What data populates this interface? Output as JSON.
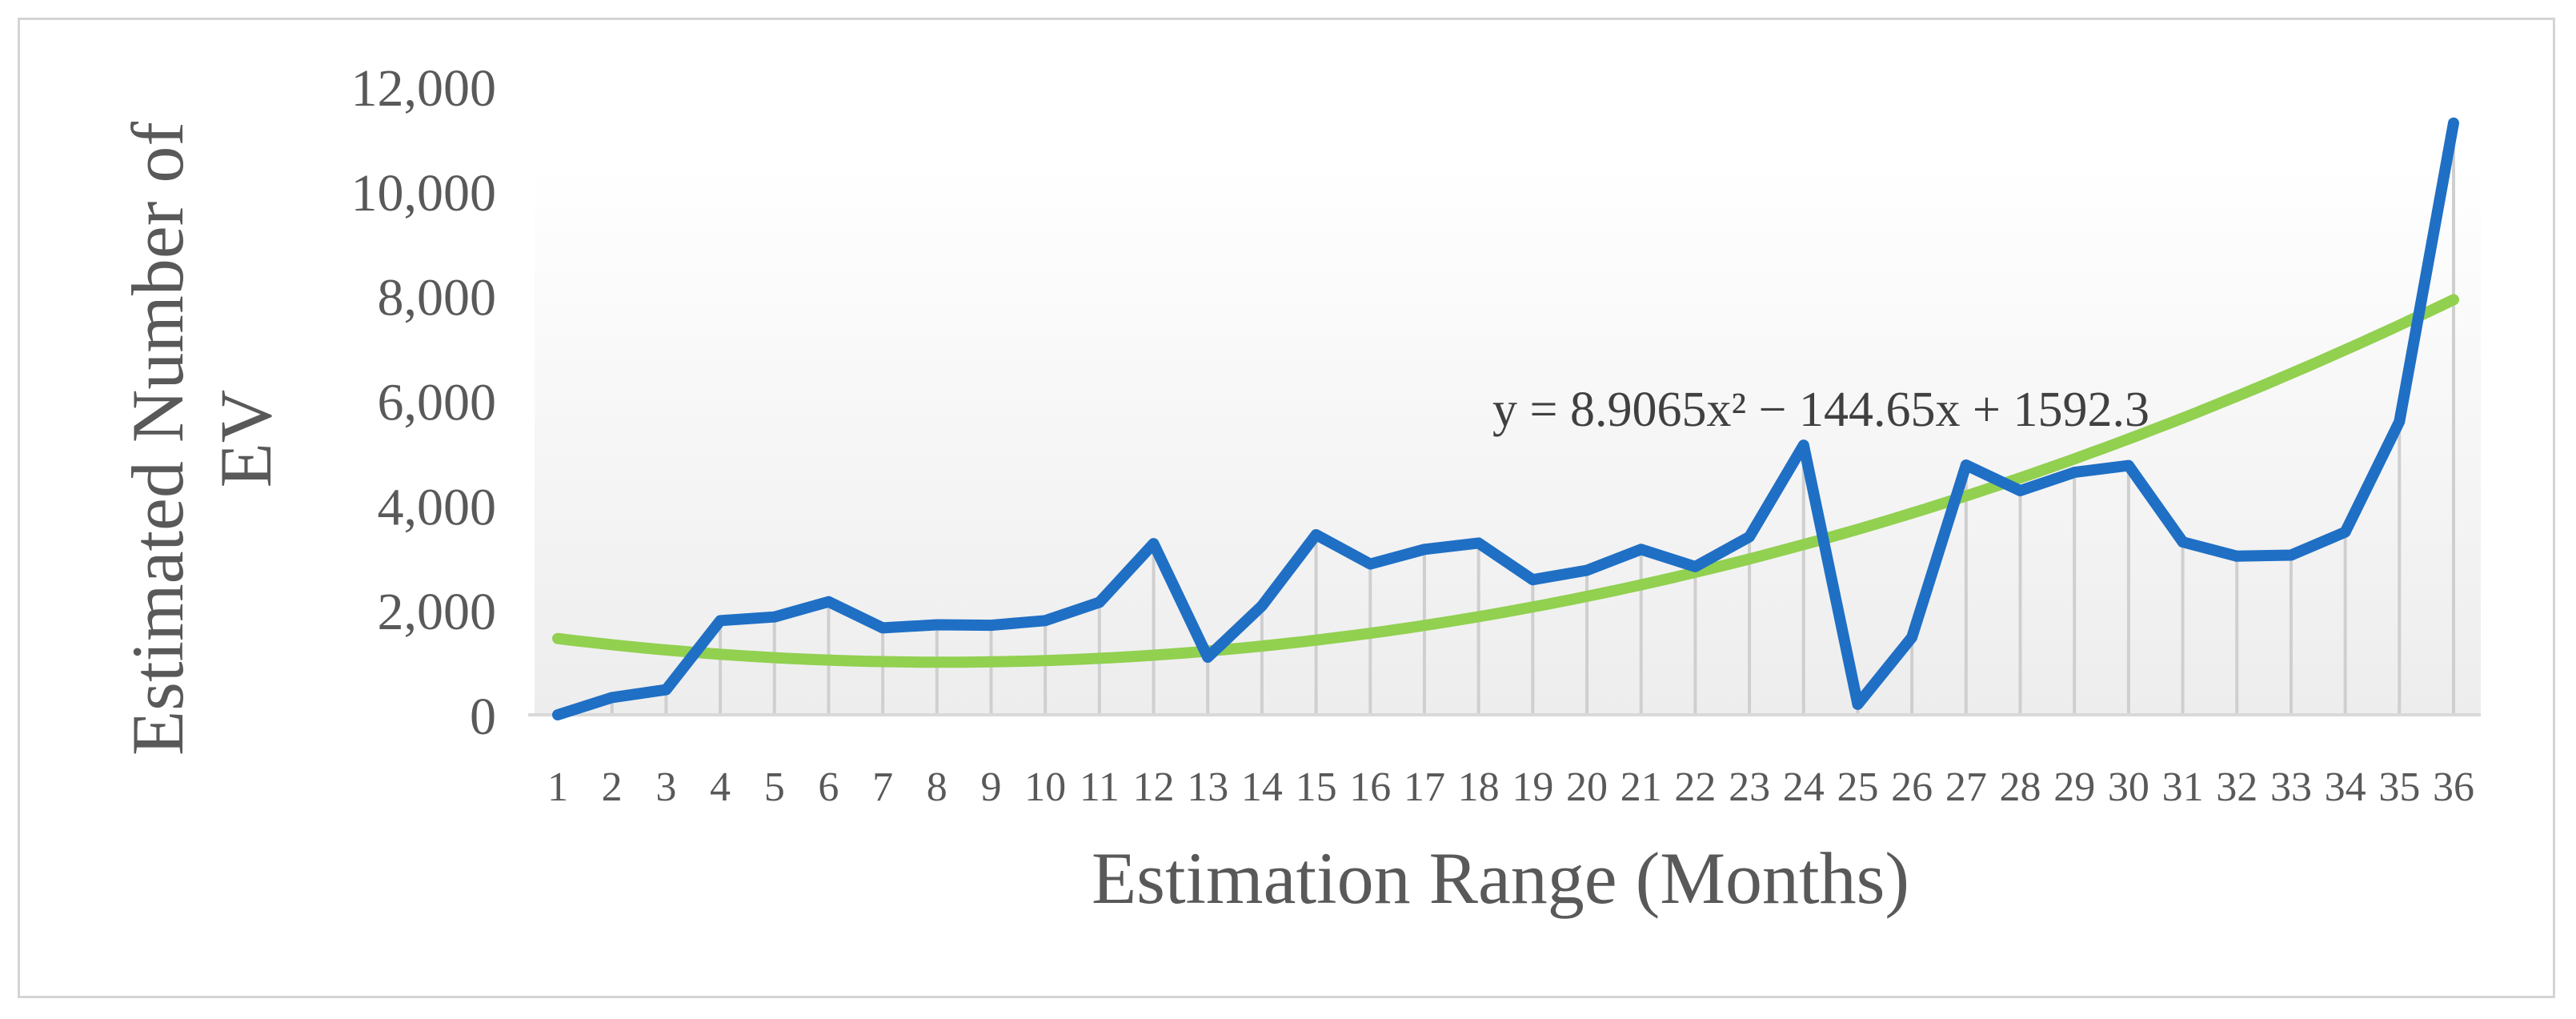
{
  "chart_data": {
    "type": "line",
    "title": "",
    "xlabel": "Estimation Range (Months)",
    "ylabel": "Estimated Number of EV",
    "ylim": [
      0,
      12000
    ],
    "yticks": [
      0,
      2000,
      4000,
      6000,
      8000,
      10000,
      12000
    ],
    "ytick_labels": [
      "0",
      "2,000",
      "4,000",
      "6,000",
      "8,000",
      "10,000",
      "12,000"
    ],
    "categories": [
      "1",
      "2",
      "3",
      "4",
      "5",
      "6",
      "7",
      "8",
      "9",
      "10",
      "11",
      "12",
      "13",
      "14",
      "15",
      "16",
      "17",
      "18",
      "19",
      "20",
      "21",
      "22",
      "23",
      "24",
      "25",
      "26",
      "27",
      "28",
      "29",
      "30",
      "31",
      "32",
      "33",
      "34",
      "35",
      "36"
    ],
    "grid": false,
    "legend": "none",
    "series": [
      {
        "color": "#1f6fc5",
        "values": [
          0,
          330,
          480,
          1800,
          1870,
          2160,
          1660,
          1720,
          1710,
          1800,
          2150,
          3270,
          1100,
          2080,
          3440,
          2880,
          3160,
          3280,
          2580,
          2760,
          3160,
          2830,
          3400,
          5150,
          200,
          1480,
          4770,
          4280,
          4630,
          4760,
          3300,
          3030,
          3050,
          3490,
          5600,
          11300
        ]
      }
    ],
    "trendline": {
      "type": "polynomial",
      "order": 2,
      "color": "#92d050",
      "coefficients": [
        8.9065,
        -144.65,
        1592.3
      ],
      "equation_text": "y = 8.9065x² − 144.65x + 1592.3"
    }
  }
}
